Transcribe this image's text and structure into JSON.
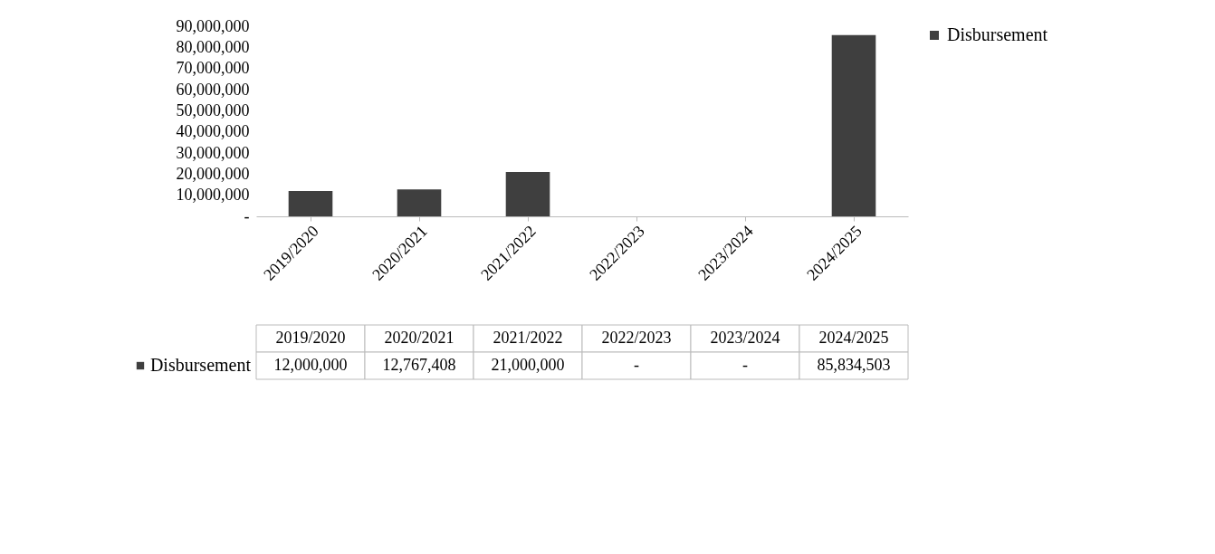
{
  "chart_data": {
    "type": "bar",
    "categories": [
      "2019/2020",
      "2020/2021",
      "2021/2022",
      "2022/2023",
      "2023/2024",
      "2024/2025"
    ],
    "series": [
      {
        "name": "Disbursement",
        "color": "#3f3f3f",
        "values": [
          12000000,
          12767408,
          21000000,
          0,
          0,
          85834503
        ],
        "value_labels": [
          "12,000,000",
          "12,767,408",
          "21,000,000",
          "-",
          "-",
          "85,834,503"
        ]
      }
    ],
    "ylim": [
      0,
      90000000
    ],
    "yticks": [
      {
        "value": 0,
        "label": "-"
      },
      {
        "value": 10000000,
        "label": "10,000,000"
      },
      {
        "value": 20000000,
        "label": "20,000,000"
      },
      {
        "value": 30000000,
        "label": "30,000,000"
      },
      {
        "value": 40000000,
        "label": "40,000,000"
      },
      {
        "value": 50000000,
        "label": "50,000,000"
      },
      {
        "value": 60000000,
        "label": "60,000,000"
      },
      {
        "value": 70000000,
        "label": "70,000,000"
      },
      {
        "value": 80000000,
        "label": "80,000,000"
      },
      {
        "value": 90000000,
        "label": "90,000,000"
      }
    ],
    "grid": false,
    "legend": "right"
  }
}
